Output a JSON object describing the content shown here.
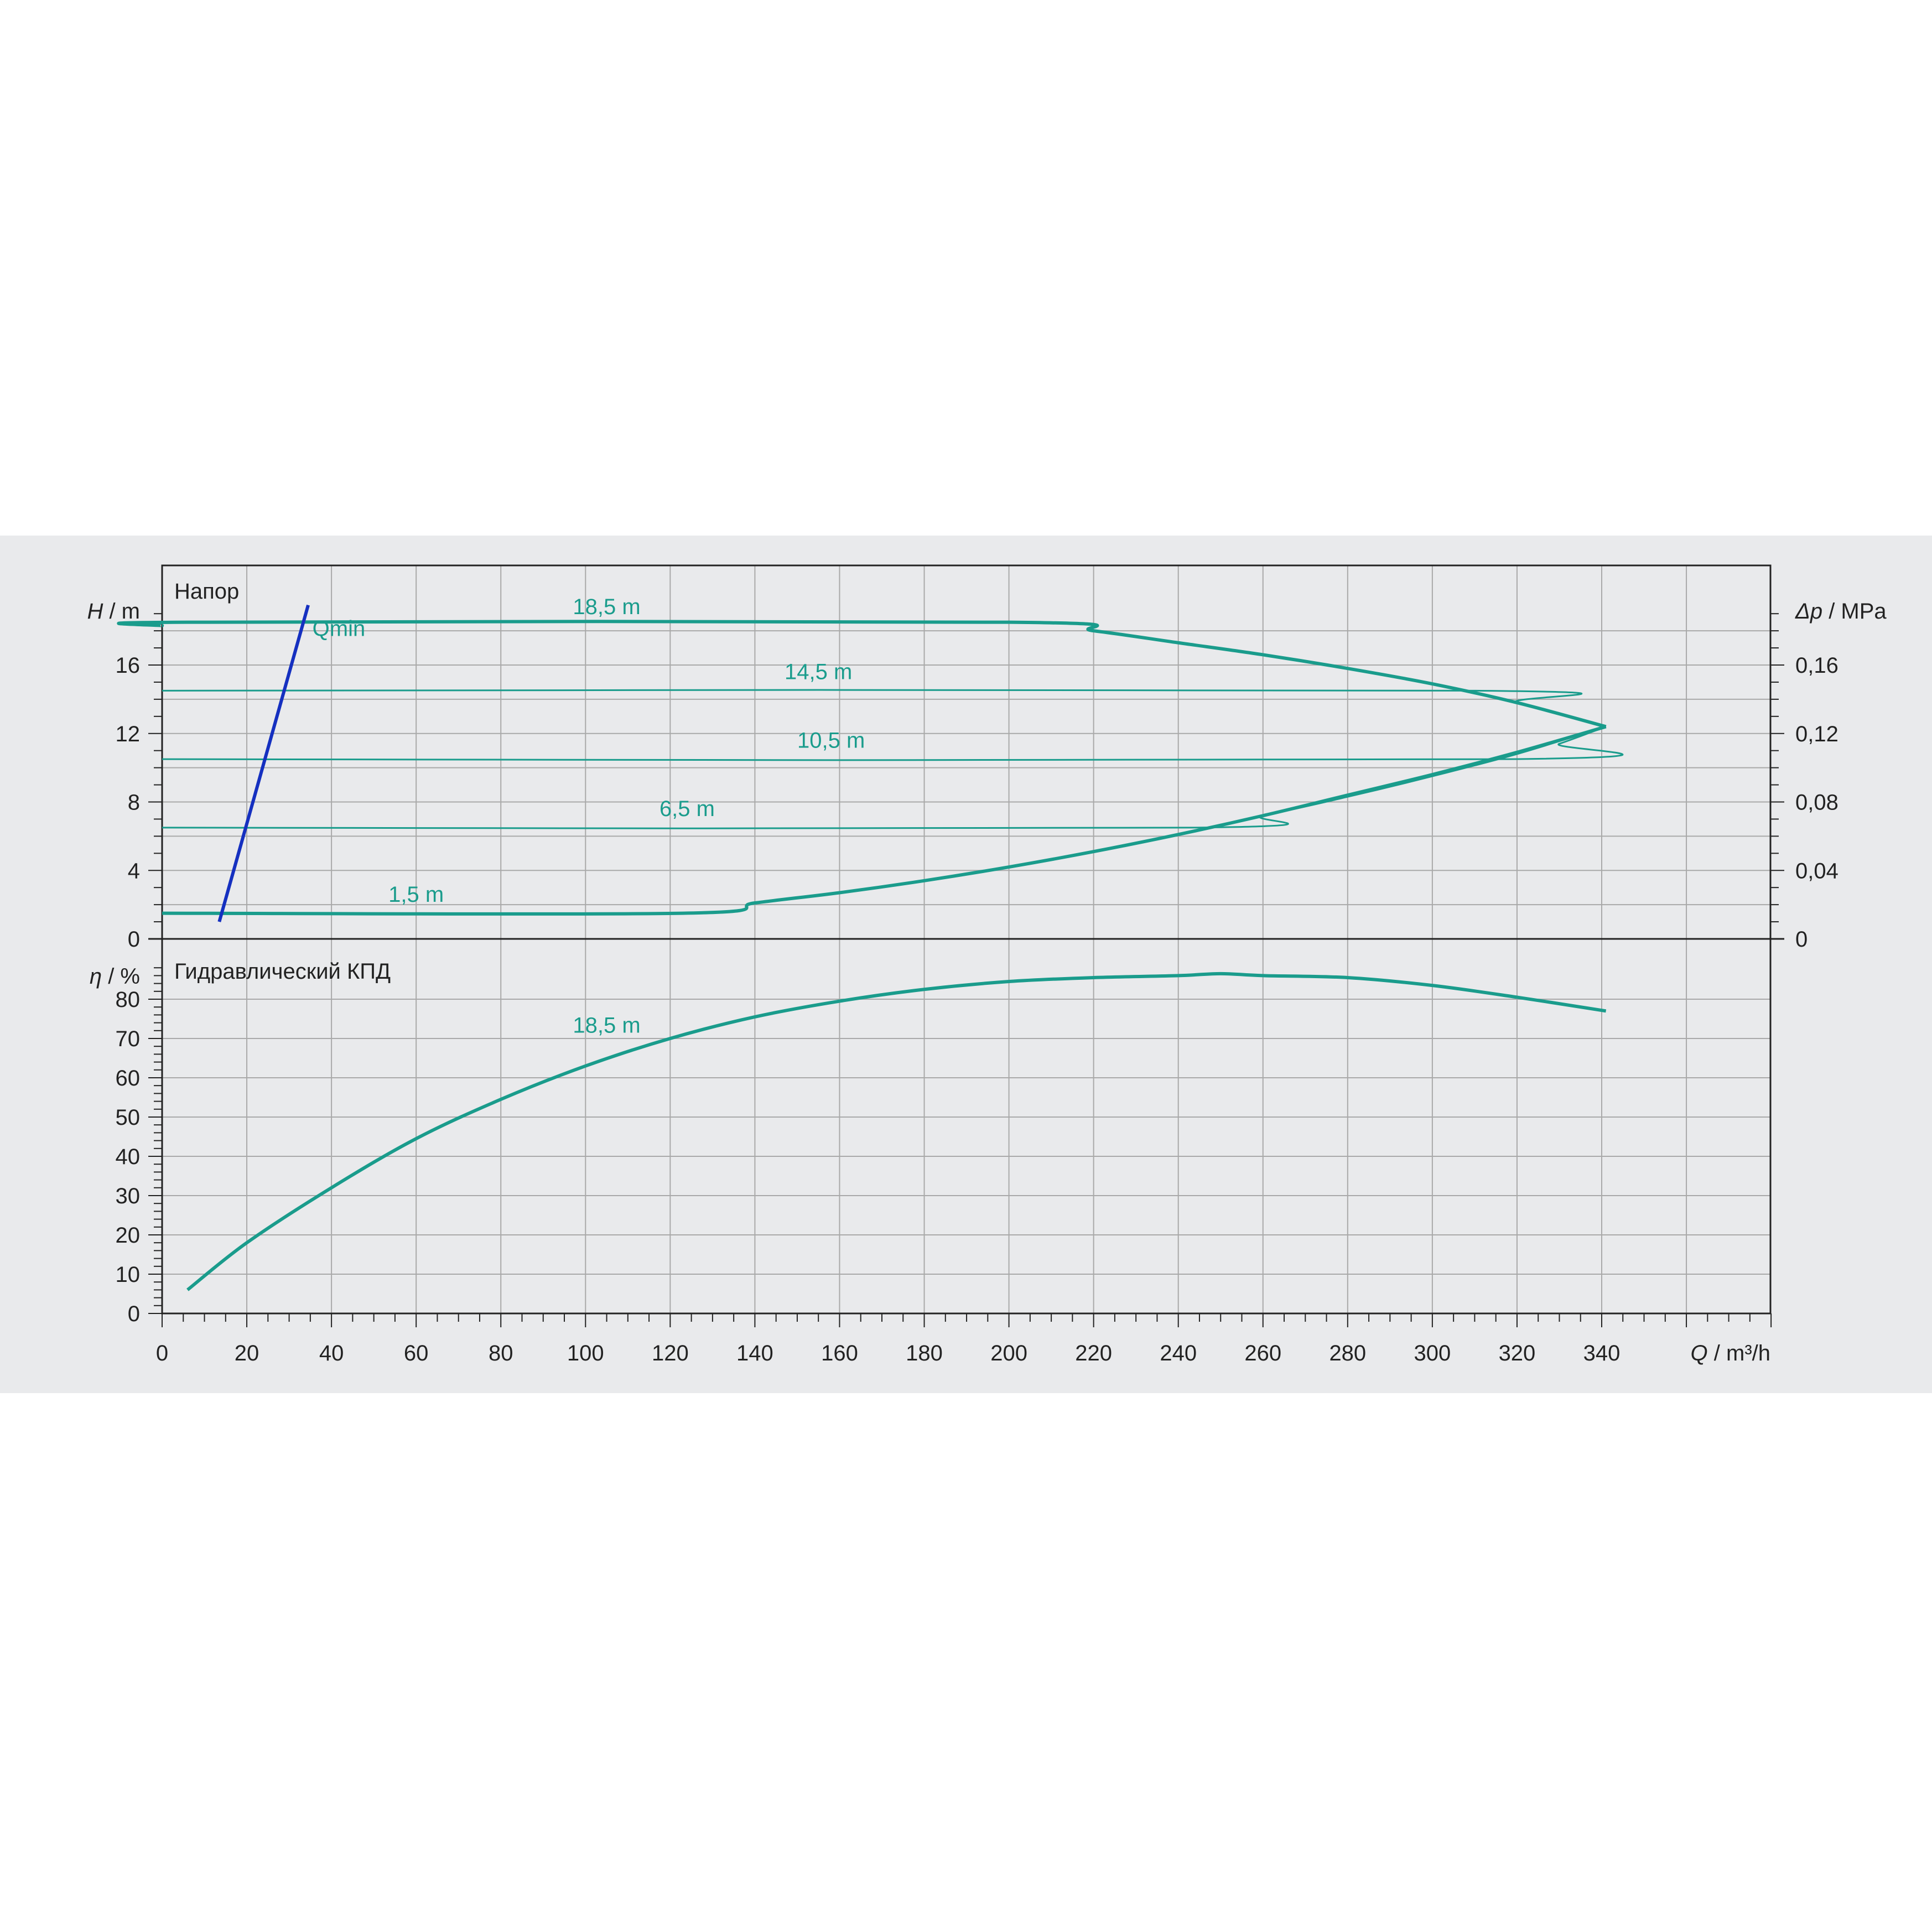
{
  "chart_data": [
    {
      "type": "line",
      "title": "Напор",
      "ylabel_symbol": "H",
      "ylabel_unit": "m",
      "y2label_symbol": "Δp",
      "y2label_unit": "MPa",
      "ylim": [
        0,
        20
      ],
      "y2lim": [
        0,
        0.2
      ],
      "yticks": [
        "0",
        "4",
        "8",
        "12",
        "16"
      ],
      "y2ticks": [
        "0",
        "0,04",
        "0,08",
        "0,12",
        "0,16"
      ],
      "qmin_label": "Qmin",
      "qmin_line": {
        "x": [
          13.5,
          34.5
        ],
        "y": [
          1.0,
          19.5
        ]
      },
      "series": [
        {
          "name": "18,5 m",
          "x": [
            0,
            6,
            200,
            220,
            240,
            260,
            280,
            300,
            320,
            341
          ],
          "y": [
            18.3,
            18.5,
            18.5,
            18.0,
            17.3,
            16.6,
            15.8,
            14.9,
            13.8,
            12.4
          ]
        },
        {
          "name": "14,5 m",
          "x": [
            0,
            310,
            320,
            341
          ],
          "y": [
            14.5,
            14.5,
            13.8,
            12.4
          ]
        },
        {
          "name": "10,5 m",
          "x": [
            0,
            318,
            330,
            341
          ],
          "y": [
            10.5,
            10.5,
            11.4,
            12.4
          ]
        },
        {
          "name": "6,5 m",
          "x": [
            0,
            243,
            260,
            280,
            300,
            320,
            341
          ],
          "y": [
            6.5,
            6.5,
            7.2,
            8.3,
            9.5,
            10.8,
            12.4
          ]
        },
        {
          "name": "1,5 m",
          "x": [
            0,
            123,
            140,
            160,
            180,
            200,
            220,
            240,
            260,
            280,
            300,
            320,
            341
          ],
          "y": [
            1.5,
            1.5,
            2.1,
            2.7,
            3.4,
            4.2,
            5.1,
            6.1,
            7.2,
            8.4,
            9.6,
            10.9,
            12.4
          ]
        }
      ]
    },
    {
      "type": "line",
      "title": "Гидравлический КПД",
      "ylabel_symbol": "η",
      "ylabel_unit": "%",
      "ylim": [
        0,
        90
      ],
      "yticks": [
        "0",
        "10",
        "20",
        "30",
        "40",
        "50",
        "60",
        "70",
        "80"
      ],
      "xlabel_symbol": "Q",
      "xlabel_unit": "m³/h",
      "xlim": [
        0,
        380
      ],
      "xticks": [
        "0",
        "20",
        "40",
        "60",
        "80",
        "100",
        "120",
        "140",
        "160",
        "180",
        "200",
        "220",
        "240",
        "260",
        "280",
        "300",
        "320",
        "340"
      ],
      "series": [
        {
          "name": "18,5 m",
          "x": [
            6,
            20,
            40,
            60,
            80,
            100,
            120,
            140,
            160,
            180,
            200,
            220,
            240,
            250,
            260,
            280,
            300,
            320,
            341
          ],
          "y": [
            6,
            18,
            32,
            44.5,
            54.5,
            63,
            70,
            75.5,
            79.5,
            82.5,
            84.5,
            85.5,
            86,
            86.5,
            86,
            85.5,
            83.5,
            80.5,
            77
          ]
        }
      ]
    }
  ],
  "colors": {
    "curve": "#1a9c8c",
    "qmin": "#1530c0",
    "grid": "#a9a9a9",
    "axis": "#222222",
    "label": "#1a9c8c",
    "panel": "#e9eaec"
  }
}
